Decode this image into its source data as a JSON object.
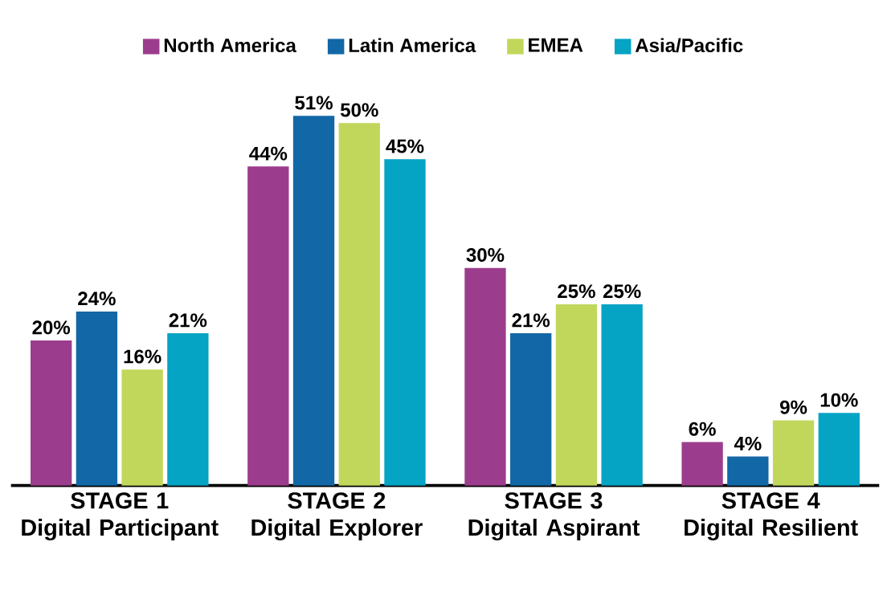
{
  "chart_data": {
    "type": "bar",
    "categories": [
      "STAGE 1\nDigital Participant",
      "STAGE 2\nDigital Explorer",
      "STAGE 3\nDigital Aspirant",
      "STAGE 4\nDigital Resilient"
    ],
    "series": [
      {
        "name": "North America",
        "color": "#9b3d8c",
        "values": [
          20,
          44,
          30,
          6
        ],
        "value_labels": [
          "20%",
          "44%",
          "30%",
          "6%"
        ]
      },
      {
        "name": "Latin America",
        "color": "#1267a6",
        "values": [
          24,
          51,
          21,
          4
        ],
        "value_labels": [
          "24%",
          "51%",
          "21%",
          "4%"
        ]
      },
      {
        "name": "EMEA",
        "color": "#c0d75c",
        "values": [
          16,
          50,
          25,
          9
        ],
        "value_labels": [
          "16%",
          "50%",
          "25%",
          "9%"
        ]
      },
      {
        "name": "Asia/Pacific",
        "color": "#05a3c4",
        "values": [
          21,
          45,
          25,
          10
        ],
        "value_labels": [
          "21%",
          "45%",
          "25%",
          "10%"
        ]
      }
    ],
    "legend": "top"
  }
}
